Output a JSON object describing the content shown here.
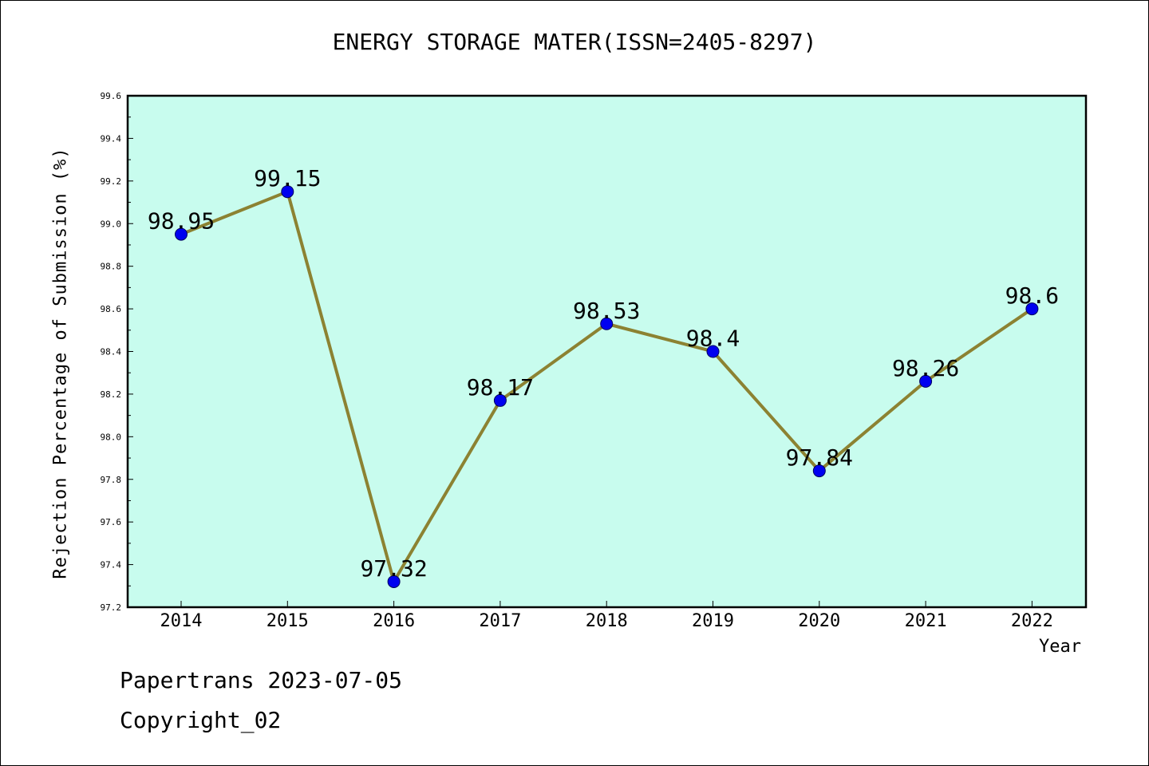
{
  "chart_data": {
    "type": "line",
    "title": "ENERGY STORAGE MATER(ISSN=2405-8297)",
    "xlabel": "Year",
    "ylabel": "Rejection Percentage of Submission (%)",
    "categories": [
      "2014",
      "2015",
      "2016",
      "2017",
      "2018",
      "2019",
      "2020",
      "2021",
      "2022"
    ],
    "values": [
      98.95,
      99.15,
      97.32,
      98.17,
      98.53,
      98.4,
      97.84,
      98.26,
      98.6
    ],
    "data_labels": [
      "98.95",
      "99.15",
      "97.32",
      "98.17",
      "98.53",
      "98.4",
      "97.84",
      "98.26",
      "98.6"
    ],
    "ylim": [
      97.2,
      99.6
    ],
    "yticks": [
      "97.2",
      "97.4",
      "97.6",
      "97.8",
      "98.0",
      "98.2",
      "98.4",
      "98.6",
      "98.8",
      "99.0",
      "99.2",
      "99.4",
      "99.6"
    ],
    "grid": false,
    "legend": "none",
    "colors": {
      "plot_background": "#c8fcee",
      "line": "#8c8232",
      "marker": "#0000f0"
    }
  },
  "footer": {
    "source": "Papertrans 2023-07-05",
    "copyright": "Copyright_02"
  }
}
